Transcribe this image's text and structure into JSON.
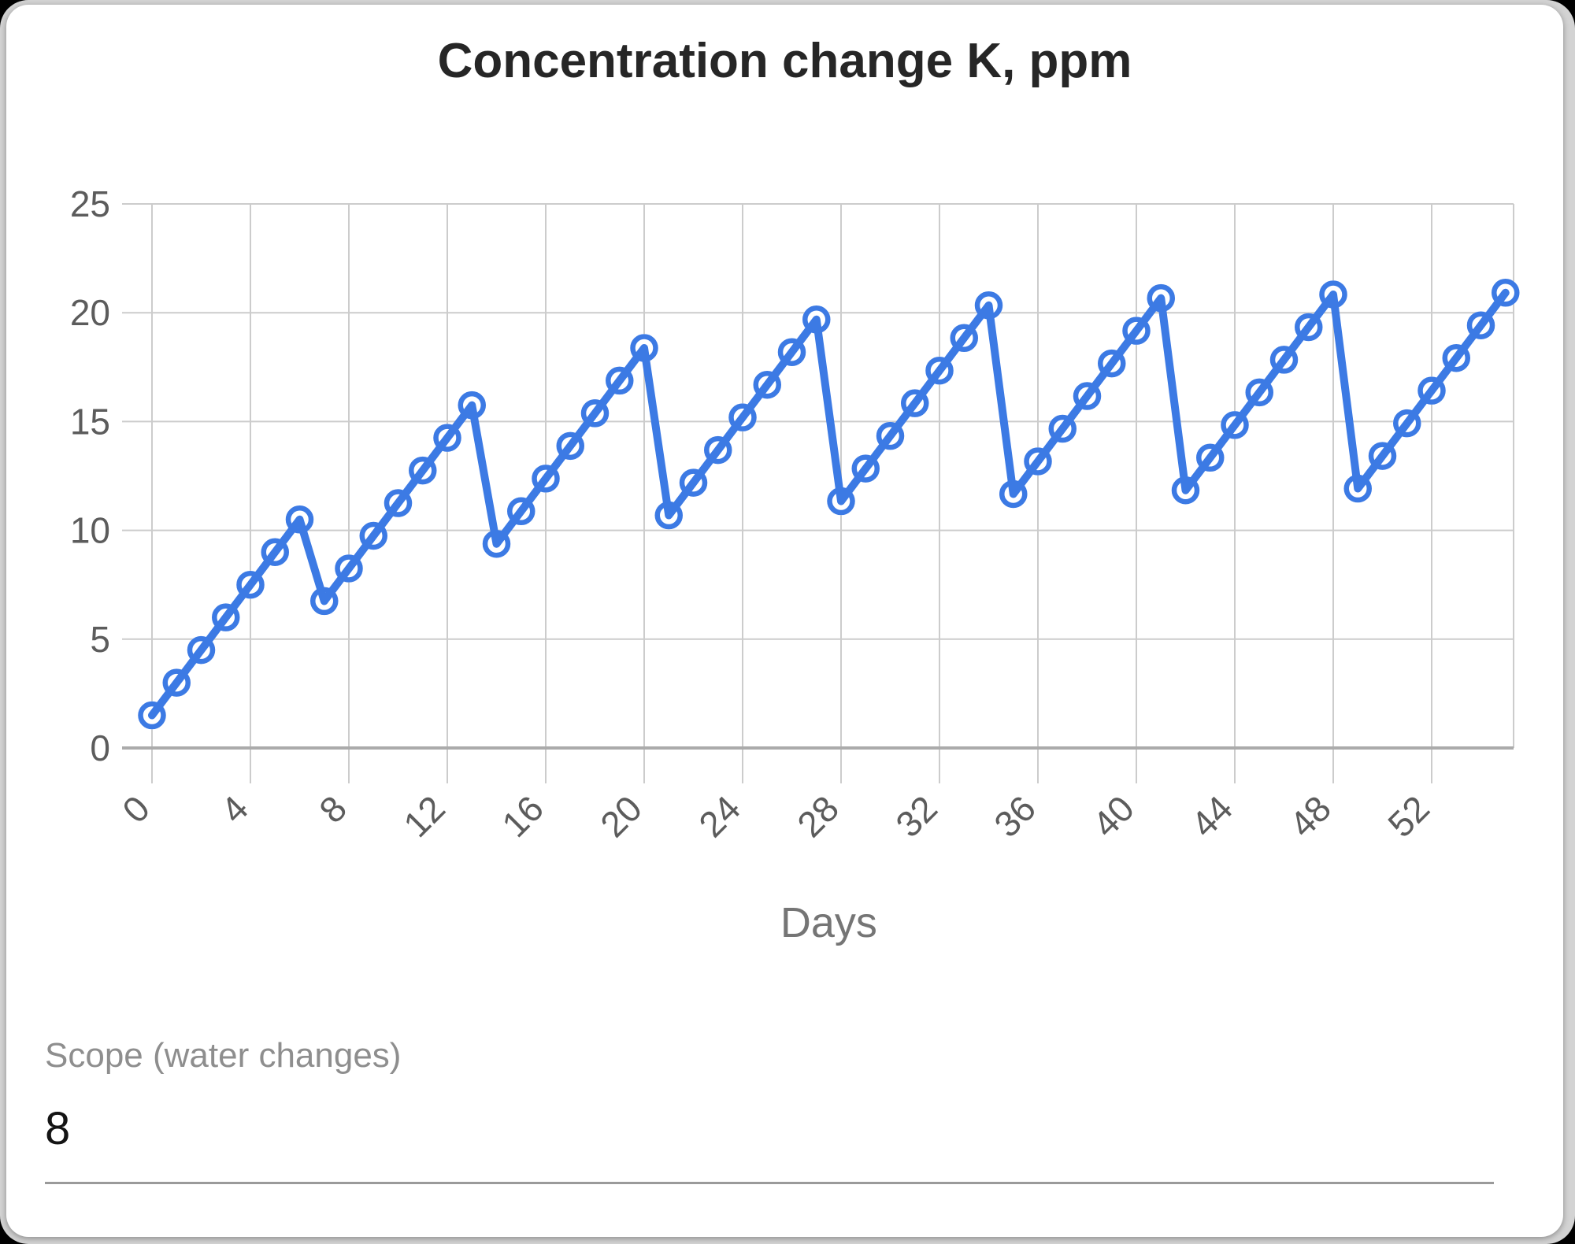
{
  "page": {
    "background_color": "#d3d3d3",
    "card_background": "#ffffff"
  },
  "chart_data": {
    "type": "line",
    "title": "Concentration change K, ppm",
    "xlabel": "Days",
    "ylabel": "",
    "x": [
      0,
      1,
      2,
      3,
      4,
      5,
      6,
      7,
      8,
      9,
      10,
      11,
      12,
      13,
      14,
      15,
      16,
      17,
      18,
      19,
      20,
      21,
      22,
      23,
      24,
      25,
      26,
      27,
      28,
      29,
      30,
      31,
      32,
      33,
      34,
      35,
      36,
      37,
      38,
      39,
      40,
      41,
      42,
      43,
      44,
      45,
      46,
      47,
      48,
      49,
      50,
      51,
      52,
      53,
      54,
      55
    ],
    "y": [
      1.5,
      3,
      4.5,
      6,
      7.5,
      9,
      10.5,
      6.75,
      8.25,
      9.75,
      11.25,
      12.75,
      14.25,
      15.75,
      9.38,
      10.88,
      12.38,
      13.88,
      15.38,
      16.88,
      18.38,
      10.69,
      12.19,
      13.69,
      15.19,
      16.69,
      18.19,
      19.69,
      11.34,
      12.84,
      14.34,
      15.84,
      17.34,
      18.84,
      20.34,
      11.67,
      13.17,
      14.67,
      16.17,
      17.67,
      19.17,
      20.67,
      11.84,
      13.34,
      14.84,
      16.34,
      17.84,
      19.34,
      20.84,
      11.92,
      13.42,
      14.92,
      16.42,
      17.92,
      19.42,
      20.92
    ],
    "x_ticks": [
      0,
      4,
      8,
      12,
      16,
      20,
      24,
      28,
      32,
      36,
      40,
      44,
      48,
      52
    ],
    "y_ticks": [
      0,
      5,
      10,
      15,
      20,
      25
    ],
    "ylim": [
      0,
      25
    ],
    "xlim": [
      0,
      55
    ],
    "grid": true,
    "legend": "none",
    "marker_shape": "open-circle",
    "colors": {
      "series": "#3c7ae4",
      "marker_fill": "#ffffff",
      "grid": "#cccccc",
      "baseline": "#ababab",
      "tick_label": "#5c5c5c",
      "axis_title": "#757575",
      "title": "#262626"
    }
  },
  "scope_field": {
    "label": "Scope (water changes)",
    "value": "8",
    "underline_color": "#9a9a9a"
  }
}
